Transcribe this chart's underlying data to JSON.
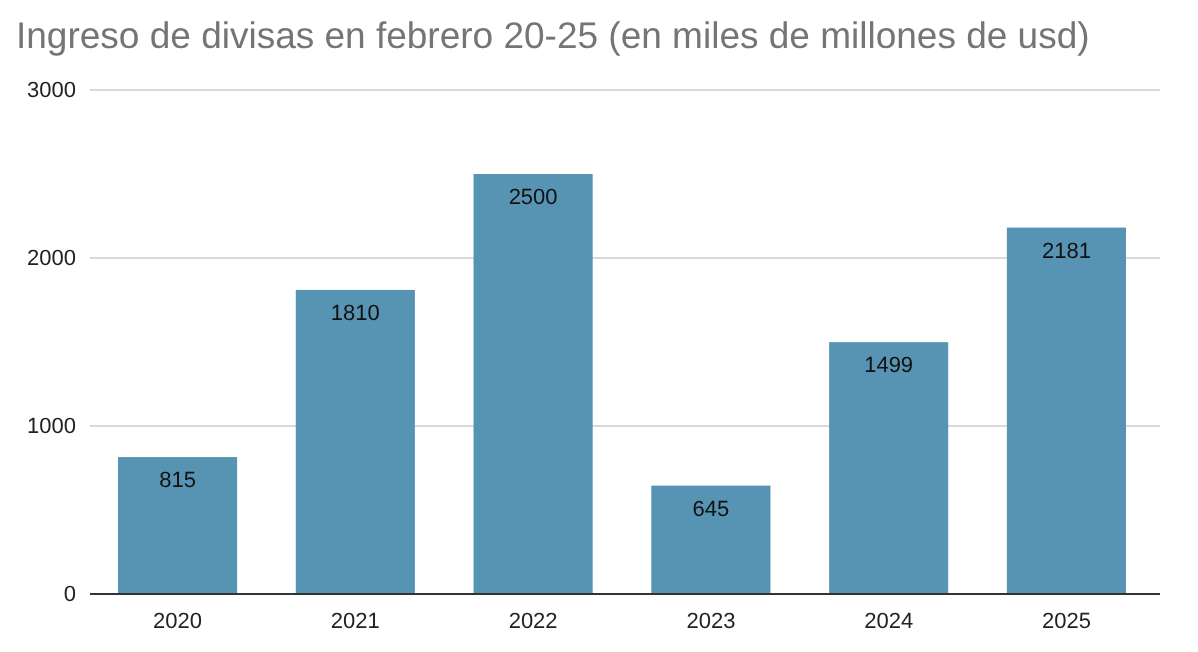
{
  "chart_data": {
    "type": "bar",
    "title": "Ingreso de divisas en febrero 20-25 (en miles de millones de usd)",
    "categories": [
      "2020",
      "2021",
      "2022",
      "2023",
      "2024",
      "2025"
    ],
    "values": [
      815,
      1810,
      2500,
      645,
      1499,
      2181
    ],
    "color": "#5793b2",
    "ylim": [
      0,
      3000
    ],
    "yticks": [
      0,
      1000,
      2000,
      3000
    ],
    "grid": "y",
    "data_labels": true
  }
}
